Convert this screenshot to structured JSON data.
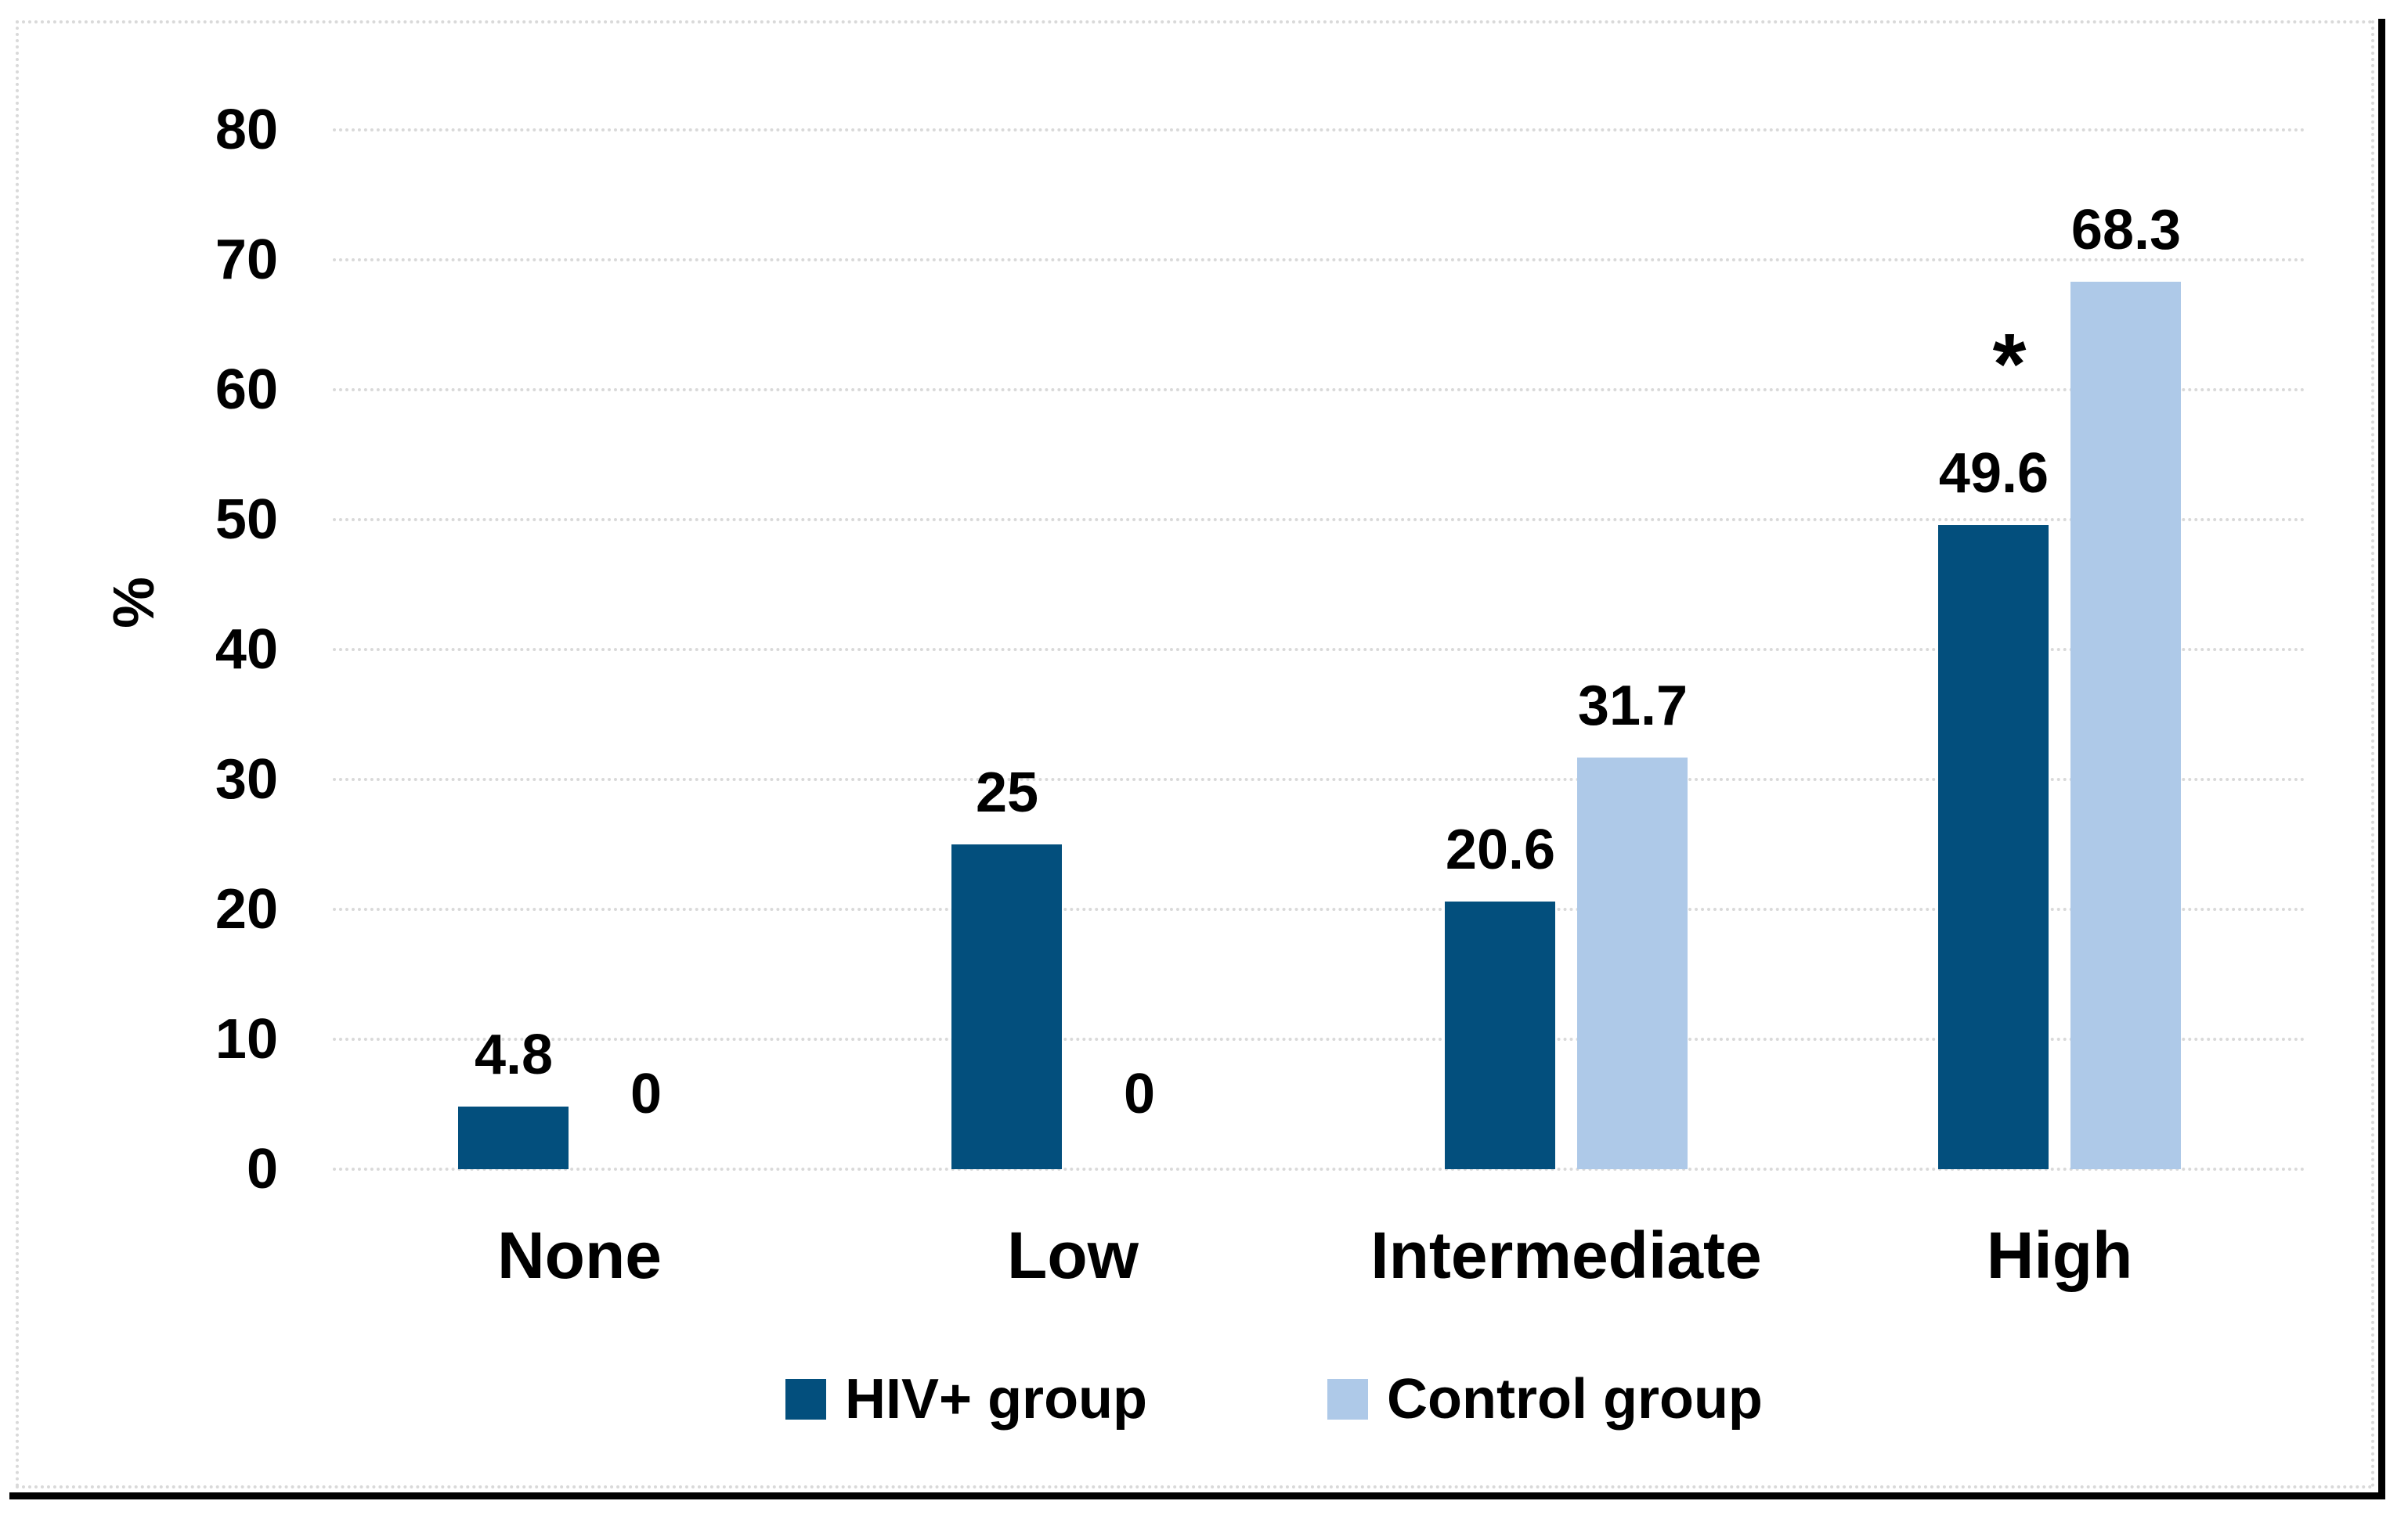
{
  "chart_data": {
    "type": "bar",
    "title": "",
    "xlabel": "",
    "ylabel": "%",
    "ylim": [
      0,
      80
    ],
    "ytick_step": 10,
    "y_ticks": [
      80,
      70,
      60,
      50,
      40,
      30,
      20,
      10,
      0
    ],
    "grid": "horizontal-dotted",
    "gridline_color": "#D9D9D9",
    "legend_position": "bottom",
    "categories": [
      "None",
      "Low",
      "Intermediate",
      "High"
    ],
    "series": [
      {
        "name": "HIV+ group",
        "color": "#034F7D",
        "values": [
          4.8,
          25,
          20.6,
          49.6
        ],
        "labels": [
          "4.8",
          "25",
          "20.6",
          "49.6"
        ]
      },
      {
        "name": "Control group",
        "color": "#AEC9E8",
        "values": [
          0,
          0,
          31.7,
          68.3
        ],
        "labels": [
          "0",
          "0",
          "31.7",
          "68.3"
        ]
      }
    ],
    "annotations": [
      {
        "text": "*",
        "series_index": 0,
        "category_index": 3
      }
    ]
  }
}
